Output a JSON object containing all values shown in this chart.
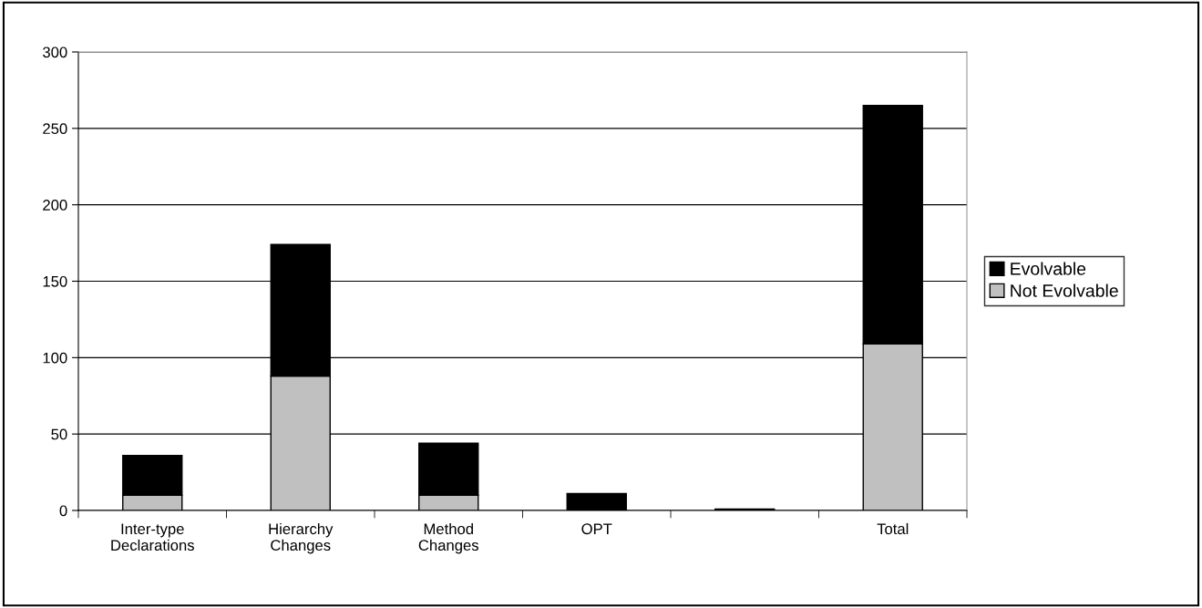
{
  "chart_data": {
    "type": "bar",
    "stacked": true,
    "categories": [
      "Inter-type\nDeclarations",
      "Hierarchy\nChanges",
      "Method\nChanges",
      "OPT",
      null,
      "Total"
    ],
    "series": [
      {
        "name": "Not Evolvable",
        "color": "#c0c0c0",
        "values": [
          10,
          88,
          10,
          0,
          0,
          109
        ]
      },
      {
        "name": "Evolvable",
        "color": "#000000",
        "values": [
          26,
          86,
          34,
          11,
          1,
          156
        ]
      }
    ],
    "ylim": [
      0,
      300
    ],
    "yticks": [
      0,
      50,
      100,
      150,
      200,
      250,
      300
    ],
    "grid": "y",
    "legend": "right"
  }
}
